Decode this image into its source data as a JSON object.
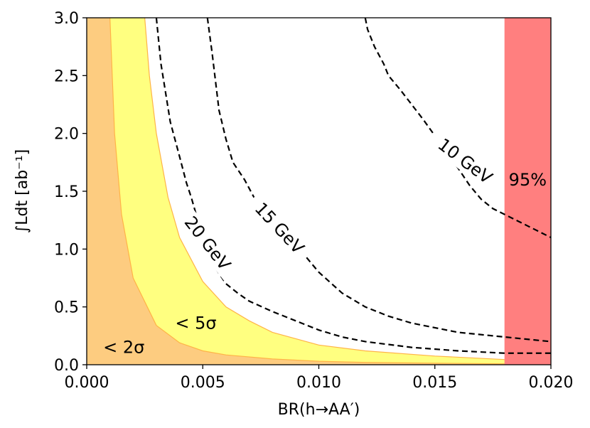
{
  "chart_data": {
    "type": "area",
    "xlabel": "BR(h→AA′)",
    "ylabel": "∫Ldt [ab⁻¹]",
    "xlim": [
      0.0,
      0.02
    ],
    "ylim": [
      0.0,
      3.0
    ],
    "x_ticks": [
      "0.000",
      "0.005",
      "0.010",
      "0.015",
      "0.020"
    ],
    "y_ticks": [
      "0.0",
      "0.5",
      "1.0",
      "1.5",
      "2.0",
      "2.5",
      "3.0"
    ],
    "grid": false,
    "colors": {
      "band_2sigma": "#fdcc80",
      "band_5sigma": "#ffff80",
      "band_edge": "#ffb347",
      "excluded": "#ff7f7f",
      "contour": "#000000"
    },
    "bands": [
      {
        "label": "< 2σ",
        "boundary": [
          [
            0.001,
            3.0
          ],
          [
            0.0012,
            2.0
          ],
          [
            0.0015,
            1.3
          ],
          [
            0.002,
            0.75
          ],
          [
            0.003,
            0.34
          ],
          [
            0.004,
            0.19
          ],
          [
            0.005,
            0.12
          ],
          [
            0.006,
            0.085
          ],
          [
            0.008,
            0.05
          ],
          [
            0.01,
            0.03
          ],
          [
            0.012,
            0.02
          ],
          [
            0.015,
            0.013
          ],
          [
            0.018,
            0.008
          ],
          [
            0.02,
            0.006
          ]
        ]
      },
      {
        "label": "< 5σ",
        "boundary": [
          [
            0.0025,
            3.0
          ],
          [
            0.0027,
            2.5
          ],
          [
            0.003,
            2.0
          ],
          [
            0.0035,
            1.45
          ],
          [
            0.004,
            1.1
          ],
          [
            0.005,
            0.72
          ],
          [
            0.006,
            0.5
          ],
          [
            0.007,
            0.38
          ],
          [
            0.008,
            0.28
          ],
          [
            0.01,
            0.17
          ],
          [
            0.012,
            0.12
          ],
          [
            0.015,
            0.075
          ],
          [
            0.018,
            0.045
          ],
          [
            0.02,
            0.04
          ]
        ]
      }
    ],
    "contours": [
      {
        "label": "20 GeV",
        "points": [
          [
            0.003,
            3.0
          ],
          [
            0.0032,
            2.6
          ],
          [
            0.0036,
            2.1
          ],
          [
            0.004,
            1.8
          ],
          [
            0.0043,
            1.57
          ],
          [
            0.0045,
            1.45
          ],
          [
            0.005,
            1.1
          ],
          [
            0.0055,
            0.85
          ],
          [
            0.006,
            0.7
          ],
          [
            0.0065,
            0.62
          ],
          [
            0.007,
            0.55
          ],
          [
            0.008,
            0.46
          ],
          [
            0.009,
            0.38
          ],
          [
            0.01,
            0.3
          ],
          [
            0.011,
            0.24
          ],
          [
            0.012,
            0.2
          ],
          [
            0.014,
            0.15
          ],
          [
            0.016,
            0.12
          ],
          [
            0.018,
            0.1
          ],
          [
            0.02,
            0.1
          ]
        ]
      },
      {
        "label": "15 GeV",
        "points": [
          [
            0.0052,
            3.0
          ],
          [
            0.0054,
            2.7
          ],
          [
            0.0057,
            2.2
          ],
          [
            0.006,
            1.95
          ],
          [
            0.0063,
            1.75
          ],
          [
            0.0068,
            1.6
          ],
          [
            0.0072,
            1.45
          ],
          [
            0.008,
            1.28
          ],
          [
            0.009,
            1.05
          ],
          [
            0.0095,
            0.92
          ],
          [
            0.01,
            0.8
          ],
          [
            0.011,
            0.62
          ],
          [
            0.012,
            0.5
          ],
          [
            0.013,
            0.42
          ],
          [
            0.014,
            0.36
          ],
          [
            0.016,
            0.28
          ],
          [
            0.018,
            0.24
          ],
          [
            0.02,
            0.2
          ]
        ]
      },
      {
        "label": "10 GeV",
        "points": [
          [
            0.012,
            3.0
          ],
          [
            0.0121,
            2.9
          ],
          [
            0.0124,
            2.75
          ],
          [
            0.0128,
            2.6
          ],
          [
            0.013,
            2.5
          ],
          [
            0.0135,
            2.38
          ],
          [
            0.014,
            2.25
          ],
          [
            0.0145,
            2.12
          ],
          [
            0.015,
            1.98
          ],
          [
            0.0155,
            1.82
          ],
          [
            0.016,
            1.7
          ],
          [
            0.0165,
            1.55
          ],
          [
            0.017,
            1.43
          ],
          [
            0.0175,
            1.35
          ],
          [
            0.018,
            1.3
          ],
          [
            0.019,
            1.2
          ],
          [
            0.02,
            1.1
          ]
        ]
      }
    ],
    "excluded_region": {
      "label": "95%",
      "x_range": [
        0.018,
        0.02
      ]
    },
    "annotations": [
      {
        "text": "< 2σ",
        "x": 0.0016,
        "y": 0.1
      },
      {
        "text": "< 5σ",
        "x": 0.0047,
        "y": 0.31
      },
      {
        "text": "95%",
        "x": 0.019,
        "y": 1.55
      }
    ]
  }
}
